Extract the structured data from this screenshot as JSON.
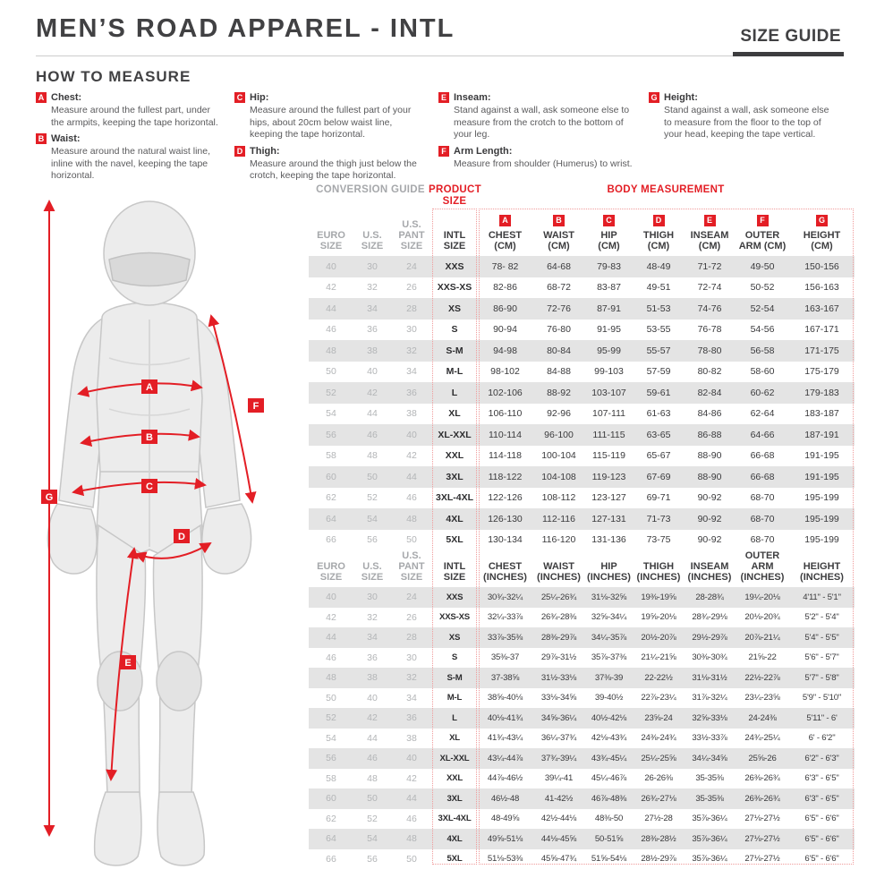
{
  "header": {
    "title": "MEN’S ROAD APPAREL - INTL",
    "size_guide": "SIZE GUIDE"
  },
  "how_to_measure": {
    "heading": "HOW TO MEASURE",
    "items": [
      {
        "letter": "A",
        "name": "Chest:",
        "text": "Measure around the fullest part, under the armpits, keeping the tape horizontal."
      },
      {
        "letter": "B",
        "name": "Waist:",
        "text": "Measure around the natural waist line, inline with the navel, keeping the tape horizontal."
      },
      {
        "letter": "C",
        "name": "Hip:",
        "text": "Measure around the fullest part of your hips, about 20cm below waist line, keeping the tape horizontal."
      },
      {
        "letter": "D",
        "name": "Thigh:",
        "text": "Measure around the thigh just below the crotch, keeping the tape horizontal."
      },
      {
        "letter": "E",
        "name": "Inseam:",
        "text": "Stand against a wall, ask someone else to measure from the crotch to the bottom of your leg."
      },
      {
        "letter": "F",
        "name": "Arm Length:",
        "text": "Measure from shoulder (Humerus) to wrist."
      },
      {
        "letter": "G",
        "name": "Height:",
        "text": "Stand against a wall, ask someone else to measure from the floor to the top of your head, keeping the tape vertical."
      }
    ]
  },
  "tables": {
    "group_headers": {
      "conversion": [
        "CONVERSION",
        "GUIDE"
      ],
      "product": [
        "PRODUCT",
        "SIZE"
      ],
      "body": [
        "BODY",
        "MEASUREMENT"
      ]
    },
    "letters": [
      "A",
      "B",
      "C",
      "D",
      "E",
      "F",
      "G"
    ],
    "cm": {
      "columns": [
        [
          "EURO",
          "SIZE"
        ],
        [
          "U.S.",
          "SIZE"
        ],
        [
          "U.S.",
          "PANT SIZE"
        ],
        [
          "INTL",
          "SIZE"
        ],
        [
          "CHEST",
          "(CM)"
        ],
        [
          "WAIST",
          "(CM)"
        ],
        [
          "HIP",
          "(CM)"
        ],
        [
          "THIGH",
          "(CM)"
        ],
        [
          "INSEAM",
          "(CM)"
        ],
        [
          "OUTER",
          "ARM (CM)"
        ],
        [
          "HEIGHT",
          "(CM)"
        ]
      ],
      "rows": [
        [
          "40",
          "30",
          "24",
          "XXS",
          "78- 82",
          "64-68",
          "79-83",
          "48-49",
          "71-72",
          "49-50",
          "150-156"
        ],
        [
          "42",
          "32",
          "26",
          "XXS-XS",
          "82-86",
          "68-72",
          "83-87",
          "49-51",
          "72-74",
          "50-52",
          "156-163"
        ],
        [
          "44",
          "34",
          "28",
          "XS",
          "86-90",
          "72-76",
          "87-91",
          "51-53",
          "74-76",
          "52-54",
          "163-167"
        ],
        [
          "46",
          "36",
          "30",
          "S",
          "90-94",
          "76-80",
          "91-95",
          "53-55",
          "76-78",
          "54-56",
          "167-171"
        ],
        [
          "48",
          "38",
          "32",
          "S-M",
          "94-98",
          "80-84",
          "95-99",
          "55-57",
          "78-80",
          "56-58",
          "171-175"
        ],
        [
          "50",
          "40",
          "34",
          "M-L",
          "98-102",
          "84-88",
          "99-103",
          "57-59",
          "80-82",
          "58-60",
          "175-179"
        ],
        [
          "52",
          "42",
          "36",
          "L",
          "102-106",
          "88-92",
          "103-107",
          "59-61",
          "82-84",
          "60-62",
          "179-183"
        ],
        [
          "54",
          "44",
          "38",
          "XL",
          "106-110",
          "92-96",
          "107-111",
          "61-63",
          "84-86",
          "62-64",
          "183-187"
        ],
        [
          "56",
          "46",
          "40",
          "XL-XXL",
          "110-114",
          "96-100",
          "111-115",
          "63-65",
          "86-88",
          "64-66",
          "187-191"
        ],
        [
          "58",
          "48",
          "42",
          "XXL",
          "114-118",
          "100-104",
          "115-119",
          "65-67",
          "88-90",
          "66-68",
          "191-195"
        ],
        [
          "60",
          "50",
          "44",
          "3XL",
          "118-122",
          "104-108",
          "119-123",
          "67-69",
          "88-90",
          "66-68",
          "191-195"
        ],
        [
          "62",
          "52",
          "46",
          "3XL-4XL",
          "122-126",
          "108-112",
          "123-127",
          "69-71",
          "90-92",
          "68-70",
          "195-199"
        ],
        [
          "64",
          "54",
          "48",
          "4XL",
          "126-130",
          "112-116",
          "127-131",
          "71-73",
          "90-92",
          "68-70",
          "195-199"
        ],
        [
          "66",
          "56",
          "50",
          "5XL",
          "130-134",
          "116-120",
          "131-136",
          "73-75",
          "90-92",
          "68-70",
          "195-199"
        ]
      ]
    },
    "inches": {
      "columns": [
        [
          "EURO",
          "SIZE"
        ],
        [
          "U.S.",
          "SIZE"
        ],
        [
          "U.S.",
          "PANT SIZE"
        ],
        [
          "INTL",
          "SIZE"
        ],
        [
          "CHEST",
          "(INCHES)"
        ],
        [
          "WAIST",
          "(INCHES)"
        ],
        [
          "HIP",
          "(INCHES)"
        ],
        [
          "THIGH",
          "(INCHES)"
        ],
        [
          "INSEAM",
          "(INCHES)"
        ],
        [
          "OUTER ARM",
          "(INCHES)"
        ],
        [
          "HEIGHT",
          "(INCHES)"
        ]
      ],
      "rows": [
        [
          "40",
          "30",
          "24",
          "XXS",
          "30¾-32¼",
          "25¼-26¾",
          "31⅛-32⅝",
          "19⅜-19⅝",
          "28-28¾",
          "19¼-20⅛",
          "4'11\" - 5'1\""
        ],
        [
          "42",
          "32",
          "26",
          "XXS-XS",
          "32¼-33⅞",
          "26¾-28⅜",
          "32⅝-34¼",
          "19⅝-20⅛",
          "28¾-29⅛",
          "20⅛-20¾",
          "5'2\" - 5'4\""
        ],
        [
          "44",
          "34",
          "28",
          "XS",
          "33⅞-35⅜",
          "28⅜-29⅞",
          "34¼-35⅞",
          "20½-20⅞",
          "29½-29⅞",
          "20⅞-21¼",
          "5'4\" - 5'5\""
        ],
        [
          "46",
          "36",
          "30",
          "S",
          "35⅜-37",
          "29⅞-31½",
          "35⅞-37⅜",
          "21¼-21⅝",
          "30⅜-30¾",
          "21⅝-22",
          "5'6\" - 5'7\""
        ],
        [
          "48",
          "38",
          "32",
          "S-M",
          "37-38⅝",
          "31½-33⅛",
          "37⅜-39",
          "22-22½",
          "31⅛-31½",
          "22½-22⅞",
          "5'7\" - 5'8\""
        ],
        [
          "50",
          "40",
          "34",
          "M-L",
          "38⅝-40⅛",
          "33⅛-34⅝",
          "39-40½",
          "22⅞-23¼",
          "31⅞-32¼",
          "23¼-23⅝",
          "5'9\" - 5'10\""
        ],
        [
          "52",
          "42",
          "36",
          "L",
          "40⅛-41¾",
          "34⅝-36¼",
          "40½-42⅛",
          "23⅝-24",
          "32⅝-33⅛",
          "24-24⅜",
          "5'11\" - 6'"
        ],
        [
          "54",
          "44",
          "38",
          "XL",
          "41¾-43¼",
          "36¼-37¾",
          "42⅛-43¾",
          "24⅜-24¾",
          "33½-33⅞",
          "24¾-25¼",
          "6' - 6'2\""
        ],
        [
          "56",
          "46",
          "40",
          "XL-XXL",
          "43¼-44⅞",
          "37¾-39¼",
          "43¾-45¼",
          "25¼-25⅝",
          "34¼-34⅝",
          "25⅝-26",
          "6'2\" - 6'3\""
        ],
        [
          "58",
          "48",
          "42",
          "XXL",
          "44⅞-46½",
          "39¼-41",
          "45¼-46⅞",
          "26-26⅜",
          "35-35⅜",
          "26⅜-26¾",
          "6'3\" - 6'5\""
        ],
        [
          "60",
          "50",
          "44",
          "3XL",
          "46½-48",
          "41-42½",
          "46⅞-48⅜",
          "26¾-27⅛",
          "35-35⅜",
          "26⅜-26¾",
          "6'3\" - 6'5\""
        ],
        [
          "62",
          "52",
          "46",
          "3XL-4XL",
          "48-49⅝",
          "42½-44⅛",
          "48⅜-50",
          "27½-28",
          "35⅞-36¼",
          "27⅛-27½",
          "6'5\" - 6'6\""
        ],
        [
          "64",
          "54",
          "48",
          "4XL",
          "49⅝-51⅛",
          "44⅛-45⅝",
          "50-51⅝",
          "28⅜-28½",
          "35⅞-36¼",
          "27⅛-27½",
          "6'5\" - 6'6\""
        ],
        [
          "66",
          "56",
          "50",
          "5XL",
          "51⅛-53⅜",
          "45⅝-47¾",
          "51⅝-54⅛",
          "28½-29⅞",
          "35⅞-36¼",
          "27⅛-27½",
          "6'5\" - 6'6\""
        ]
      ]
    }
  },
  "colors": {
    "accent": "#e31e25",
    "dark": "#414143",
    "muted": "#a6a8ab",
    "stripe": "#e4e4e4"
  }
}
